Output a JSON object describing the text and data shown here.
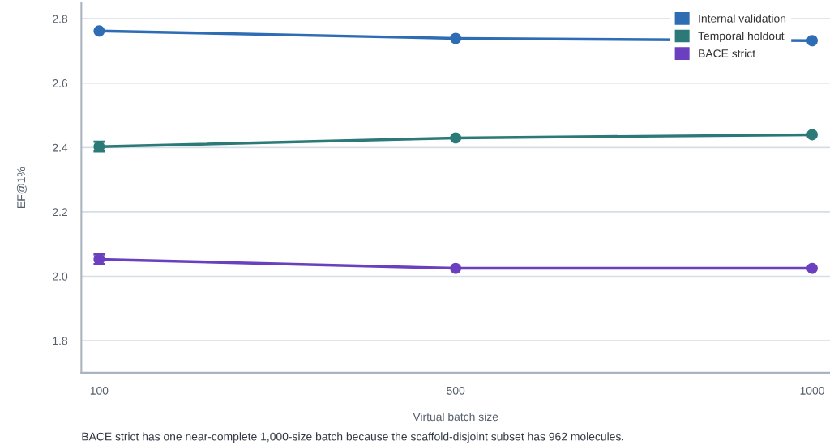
{
  "chart_data": {
    "type": "line",
    "xlabel": "Virtual batch size",
    "ylabel": "EF@1%",
    "categories": [
      "100",
      "500",
      "1000"
    ],
    "series": [
      {
        "name": "Internal validation",
        "color": "#2e6db4",
        "values": [
          2.762,
          2.739,
          2.732
        ]
      },
      {
        "name": "Temporal holdout",
        "color": "#2b7a78",
        "values": [
          2.403,
          2.43,
          2.44
        ],
        "errors": [
          0.015,
          null,
          null
        ]
      },
      {
        "name": "BACE strict",
        "color": "#6a40c0",
        "values": [
          2.053,
          2.025,
          2.025
        ],
        "errors": [
          0.015,
          null,
          null
        ]
      }
    ],
    "ylim": [
      1.7,
      2.85
    ],
    "yticks": [
      1.8,
      {
        "value": 2.0,
        "label": "2.0"
      },
      2.2,
      2.4,
      2.6,
      2.8
    ],
    "grid": "y",
    "legend": "top right",
    "marker": "circle",
    "line_style": "solid",
    "annotations": [
      "BACE strict has one near-complete 1,000-size batch because the scaffold-disjoint subset has 962 molecules."
    ]
  }
}
